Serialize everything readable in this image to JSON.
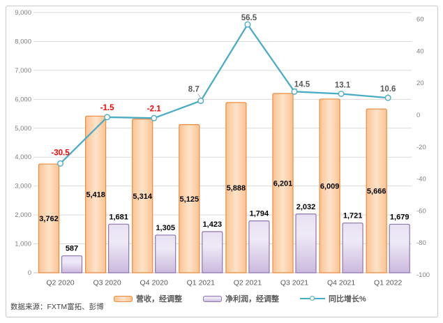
{
  "chart_data": {
    "type": "combo-bar-line",
    "title": "",
    "categories": [
      "Q2 2020",
      "Q3 2020",
      "Q4 2020",
      "Q1 2021",
      "Q2 2021",
      "Q3 2021",
      "Q4 2021",
      "Q1 2022"
    ],
    "series": [
      {
        "name": "营收，经调整",
        "type": "bar",
        "axis": "left",
        "values": [
          3762,
          5418,
          5314,
          5125,
          5888,
          6201,
          6009,
          5666
        ],
        "labels": [
          "3,762",
          "5,418",
          "5,314",
          "5,125",
          "5,888",
          "6,201",
          "6,009",
          "5,666"
        ],
        "fill_edge": "#FAC392",
        "fill_center": "#FDE3C9",
        "border": "#EC8C3F"
      },
      {
        "name": "净利润，经调整",
        "type": "bar",
        "axis": "left",
        "values": [
          587,
          1681,
          1305,
          1423,
          1794,
          2032,
          1721,
          1679
        ],
        "labels": [
          "587",
          "1,681",
          "1,305",
          "1,423",
          "1,794",
          "2,032",
          "1,721",
          "1,679"
        ],
        "fill_top": "#E7E0F2",
        "fill_mid": "#EFEAF7",
        "fill_bottom": "#CBB9DE",
        "border": "#8E76AE"
      },
      {
        "name": "同比增长%",
        "type": "line",
        "axis": "right",
        "values": [
          -30.5,
          -1.5,
          -2.1,
          8.7,
          56.5,
          14.5,
          13.1,
          10.6
        ],
        "labels": [
          "-30.5",
          "-1.5",
          "-2.1",
          "8.7",
          "56.5",
          "14.5",
          "13.1",
          "10.6"
        ],
        "color": "#4BACC6",
        "negative_label_color": "#FF0000",
        "positive_label_color": "#595959"
      }
    ],
    "left_axis": {
      "min": 0,
      "max": 9000,
      "step": 1000,
      "tick_labels": [
        "0",
        "1,000",
        "2,000",
        "3,000",
        "4,000",
        "5,000",
        "6,000",
        "7,000",
        "8,000",
        "9,000"
      ]
    },
    "right_axis": {
      "min": -100,
      "max": 60,
      "step": 20,
      "tick_labels": [
        "-100",
        "-80",
        "-60",
        "-40",
        "-20",
        "0",
        "20",
        "40",
        "60"
      ]
    },
    "grid": true,
    "legend_position": "bottom"
  },
  "colors": {
    "background": "#FFFFFF",
    "frame_border": "#C9C9C9",
    "grid": "#D9D9D9",
    "baseline": "#BFBFBF",
    "axis_text": "#808080",
    "category_text": "#595959",
    "bar_label": "#000000",
    "leader": "#A6A6A6"
  },
  "source_note": "数据来源：FXTM富拓、彭博"
}
